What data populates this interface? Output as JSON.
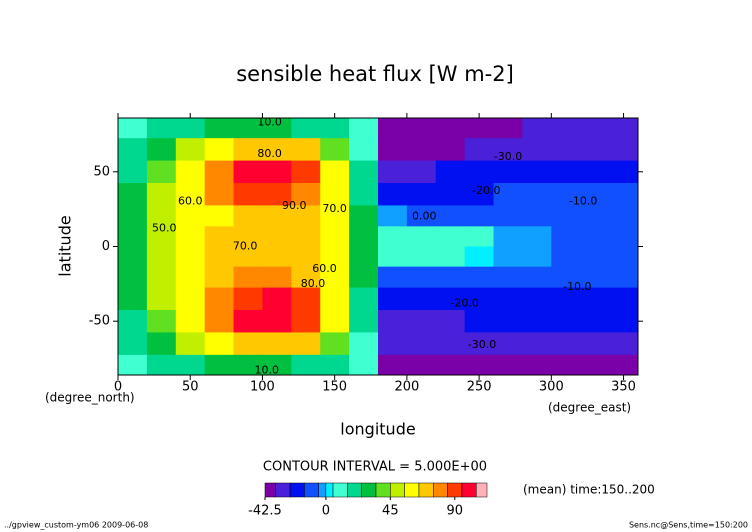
{
  "chart_data": {
    "type": "contour",
    "title": "sensible heat flux [W m-2]",
    "x_label": "longitude",
    "x_unit": "(degree_east)",
    "y_label": "latitude",
    "y_unit": "(degree_north)",
    "xlim": [
      0,
      360
    ],
    "ylim": [
      -86,
      86
    ],
    "xticks": [
      0,
      50,
      100,
      150,
      200,
      250,
      300,
      350
    ],
    "yticks": [
      -50,
      0,
      50
    ],
    "x": [
      10,
      30,
      50,
      70,
      90,
      110,
      130,
      150,
      170,
      190,
      210,
      230,
      250,
      270,
      290,
      310,
      330,
      350
    ],
    "y": [
      80,
      65,
      50,
      35,
      20,
      7,
      -7,
      -20,
      -35,
      -50,
      -65,
      -80
    ],
    "z": [
      [
        8,
        15,
        20,
        25,
        25,
        25,
        22,
        15,
        5,
        -40,
        -40,
        -40,
        -40,
        -40,
        -35,
        -35,
        -30,
        -30
      ],
      [
        15,
        30,
        45,
        60,
        70,
        72,
        65,
        40,
        10,
        -40,
        -40,
        -40,
        -35,
        -30,
        -30,
        -30,
        -30,
        -30
      ],
      [
        20,
        40,
        60,
        80,
        95,
        97,
        85,
        55,
        15,
        -30,
        -30,
        -25,
        -25,
        -25,
        -25,
        -25,
        -25,
        -25
      ],
      [
        25,
        45,
        60,
        75,
        88,
        90,
        80,
        60,
        20,
        -20,
        -20,
        -20,
        -20,
        -15,
        -15,
        -15,
        -15,
        -15
      ],
      [
        25,
        45,
        55,
        62,
        68,
        72,
        68,
        60,
        25,
        -5,
        -10,
        -10,
        -10,
        -10,
        -10,
        -10,
        -10,
        -10
      ],
      [
        25,
        45,
        55,
        65,
        70,
        70,
        68,
        58,
        25,
        5,
        8,
        8,
        5,
        -5,
        -5,
        -8,
        -8,
        -8
      ],
      [
        25,
        45,
        55,
        65,
        70,
        70,
        68,
        58,
        25,
        5,
        5,
        5,
        0,
        -5,
        -5,
        -8,
        -8,
        -8
      ],
      [
        25,
        45,
        58,
        68,
        75,
        78,
        72,
        62,
        25,
        -10,
        -10,
        -10,
        -10,
        -10,
        -10,
        -10,
        -10,
        -10
      ],
      [
        25,
        45,
        62,
        80,
        92,
        95,
        85,
        62,
        20,
        -20,
        -20,
        -20,
        -20,
        -20,
        -20,
        -20,
        -20,
        -20
      ],
      [
        20,
        40,
        60,
        82,
        98,
        102,
        88,
        55,
        15,
        -30,
        -30,
        -28,
        -25,
        -25,
        -25,
        -25,
        -25,
        -25
      ],
      [
        15,
        30,
        45,
        60,
        70,
        72,
        65,
        40,
        10,
        -35,
        -35,
        -35,
        -30,
        -30,
        -30,
        -30,
        -30,
        -30
      ],
      [
        8,
        15,
        20,
        25,
        25,
        25,
        22,
        15,
        5,
        -40,
        -40,
        -40,
        -40,
        -40,
        -40,
        -40,
        -40,
        -40
      ]
    ],
    "contour_labels": [
      {
        "text": "10.0",
        "x": 105,
        "y": 83
      },
      {
        "text": "80.0",
        "x": 105,
        "y": 62
      },
      {
        "text": "90.0",
        "x": 122,
        "y": 27
      },
      {
        "text": "70.0",
        "x": 88,
        "y": 0
      },
      {
        "text": "60.0",
        "x": 50,
        "y": 30
      },
      {
        "text": "50.0",
        "x": 32,
        "y": 12
      },
      {
        "text": "70.0",
        "x": 150,
        "y": 25
      },
      {
        "text": "60.0",
        "x": 143,
        "y": -15
      },
      {
        "text": "80.0",
        "x": 135,
        "y": -25
      },
      {
        "text": "0.00",
        "x": 212,
        "y": 20
      },
      {
        "text": "-30.0",
        "x": 270,
        "y": 60
      },
      {
        "text": "-20.0",
        "x": 255,
        "y": 37
      },
      {
        "text": "-10.0",
        "x": 322,
        "y": 30
      },
      {
        "text": "-10.0",
        "x": 318,
        "y": -27
      },
      {
        "text": "-20.0",
        "x": 240,
        "y": -38
      },
      {
        "text": "-30.0",
        "x": 252,
        "y": -66
      },
      {
        "text": "10.0",
        "x": 103,
        "y": -83
      }
    ],
    "contour_interval": "CONTOUR INTERVAL = 5.000E+00",
    "colorbar": {
      "bounds": [
        -42.5,
        -35,
        -25,
        -15,
        -5,
        0,
        5,
        15,
        25,
        35,
        45,
        55,
        65,
        75,
        85,
        95,
        105,
        112.5
      ],
      "colors": [
        "#7a00a8",
        "#4a20d8",
        "#0010f0",
        "#1050ff",
        "#10a0ff",
        "#00f0ff",
        "#40ffd0",
        "#00d890",
        "#00c040",
        "#60e020",
        "#c0f000",
        "#ffff00",
        "#ffc800",
        "#ff8800",
        "#ff3a00",
        "#ff0030",
        "#ffb0b8"
      ],
      "ticks": [
        -42.5,
        0,
        45,
        90
      ]
    },
    "time_note": "(mean) time:150..200",
    "footer_left": "../gpview_custom-ym06  2009-06-08",
    "footer_right": "Sens.nc@Sens,time=150:200"
  }
}
